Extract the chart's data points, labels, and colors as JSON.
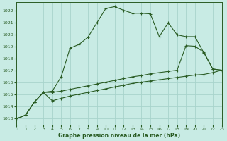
{
  "xlabel": "Graphe pression niveau de la mer (hPa)",
  "bg_color": "#c8ebe4",
  "grid_color": "#a8d4cc",
  "line_color": "#2a5c24",
  "xlim": [
    0,
    23
  ],
  "ylim": [
    1012.5,
    1022.7
  ],
  "yticks": [
    1013,
    1014,
    1015,
    1016,
    1017,
    1018,
    1019,
    1020,
    1021,
    1022
  ],
  "xticks": [
    0,
    1,
    2,
    3,
    4,
    5,
    6,
    7,
    8,
    9,
    10,
    11,
    12,
    13,
    14,
    15,
    16,
    17,
    18,
    19,
    20,
    21,
    22,
    23
  ],
  "line1_x": [
    0,
    1,
    2,
    3,
    4,
    5,
    6,
    7,
    8,
    9,
    10,
    11,
    12,
    13,
    14,
    15,
    16,
    17,
    18,
    19,
    20,
    21,
    22,
    23
  ],
  "line1_y": [
    1013.0,
    1013.3,
    1014.4,
    1015.2,
    1015.3,
    1016.5,
    1018.9,
    1019.2,
    1019.8,
    1021.0,
    1022.2,
    1022.35,
    1022.05,
    1021.8,
    1021.8,
    1021.75,
    1019.85,
    1021.0,
    1020.0,
    1019.85,
    1019.85,
    1018.5,
    1017.15,
    1017.05
  ],
  "line2_x": [
    0,
    1,
    2,
    3,
    4,
    5,
    6,
    7,
    8,
    9,
    10,
    11,
    12,
    13,
    14,
    15,
    16,
    17,
    18,
    19,
    20,
    21,
    22,
    23
  ],
  "line2_y": [
    1013.0,
    1013.3,
    1014.4,
    1015.2,
    1015.2,
    1015.3,
    1015.45,
    1015.6,
    1015.75,
    1015.9,
    1016.05,
    1016.2,
    1016.35,
    1016.5,
    1016.6,
    1016.75,
    1016.85,
    1016.95,
    1017.05,
    1019.1,
    1019.05,
    1018.55,
    1017.15,
    1017.05
  ],
  "line3_x": [
    0,
    1,
    2,
    3,
    4,
    5,
    6,
    7,
    8,
    9,
    10,
    11,
    12,
    13,
    14,
    15,
    16,
    17,
    18,
    19,
    20,
    21,
    22,
    23
  ],
  "line3_y": [
    1013.0,
    1013.3,
    1014.4,
    1015.2,
    1014.5,
    1014.7,
    1014.9,
    1015.05,
    1015.2,
    1015.35,
    1015.5,
    1015.65,
    1015.8,
    1015.95,
    1016.05,
    1016.15,
    1016.25,
    1016.35,
    1016.45,
    1016.55,
    1016.65,
    1016.7,
    1016.85,
    1017.05
  ]
}
